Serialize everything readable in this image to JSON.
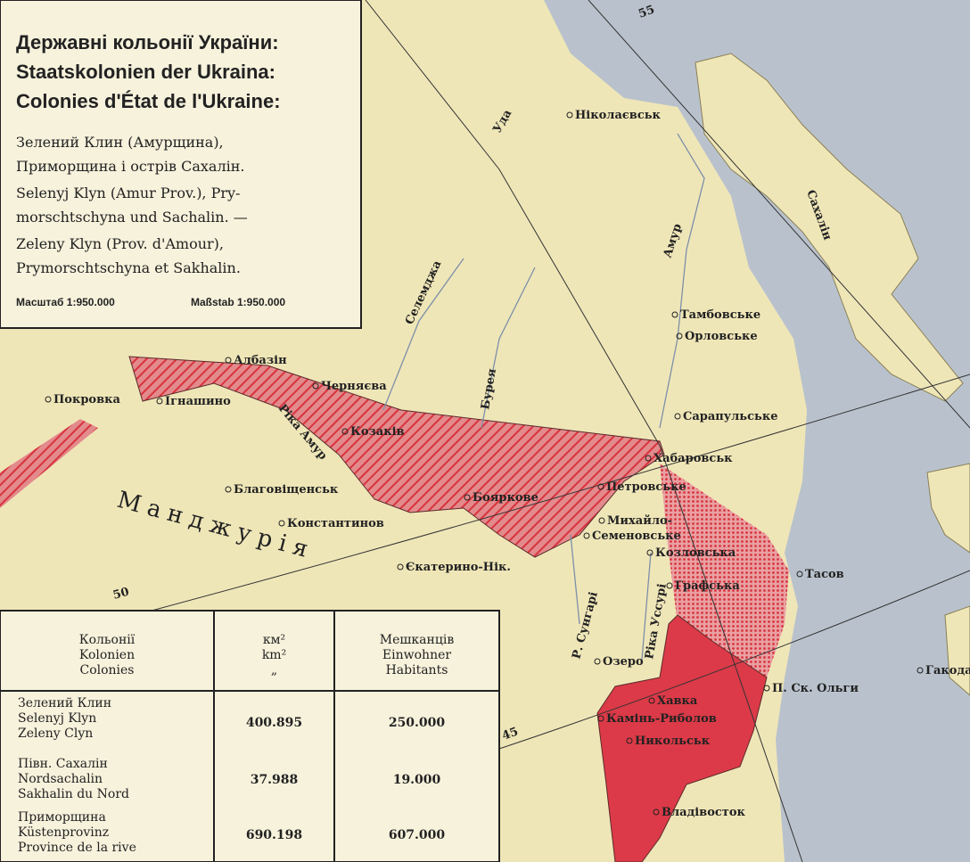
{
  "legend": {
    "titles": [
      "Державні кольонії України:",
      "Staatskolonien der Ukraina:",
      "Colonies d'État de l'Ukraine:"
    ],
    "description": [
      "Зелений Клин (Амурщина),",
      "Приморщина і острів Сахалін.",
      "Selenyj Klyn (Amur Prov.), Pry-",
      "morschtschyna und Sachalin. —",
      "Zeleny Klyn (Prov. d'Amour),",
      "Prymorschtschyna et Sakhalin."
    ],
    "scale": [
      "Масштаб 1:950.000",
      "Maßstab 1:950.000"
    ]
  },
  "graticule_labels": [
    "55",
    "50",
    "45"
  ],
  "places": [
    "Ніколаєвськ",
    "Уда",
    "Сахалін",
    "Амур",
    "Тамбовське",
    "Орловське",
    "Селемджа",
    "Бурея",
    "Албазін",
    "Покровка",
    "Ігнашино",
    "Черняєва",
    "Ріка Амур",
    "Козаків",
    "Сарапульське",
    "Хабаровськ",
    "Благовіщенськ",
    "Петровське",
    "Бояркове",
    "Константинов",
    "Михайло-",
    "Семеновське",
    "Манджурія",
    "Козловська",
    "Тасов",
    "Єкатерино-Нік.",
    "Р. Сунгарі",
    "Ріка Уссурі",
    "Графська",
    "Озеро",
    "П. Ск. Ольги",
    "Гакодат",
    "Хавка",
    "Камінь-Риболов",
    "Никольськ",
    "Владівосток"
  ],
  "table": {
    "header": [
      [
        "Кольонії",
        "Kolonien",
        "Colonies"
      ],
      [
        "км²",
        "km²",
        "„"
      ],
      [
        "Мешканців",
        "Einwohner",
        "Habitants"
      ]
    ],
    "rows": [
      [
        [
          "Зелений Клин",
          "Selenyj Klyn",
          "Zeleny Clyn"
        ],
        "400.895",
        "250.000"
      ],
      [
        [
          "Півн. Сахалін",
          "Nordsachalin",
          "Sakhalin du Nord"
        ],
        "37.988",
        "19.000"
      ],
      [
        [
          "Приморщина",
          "Küstenprovinz",
          "Province de la rive"
        ],
        "690.198",
        "607.000"
      ]
    ]
  }
}
